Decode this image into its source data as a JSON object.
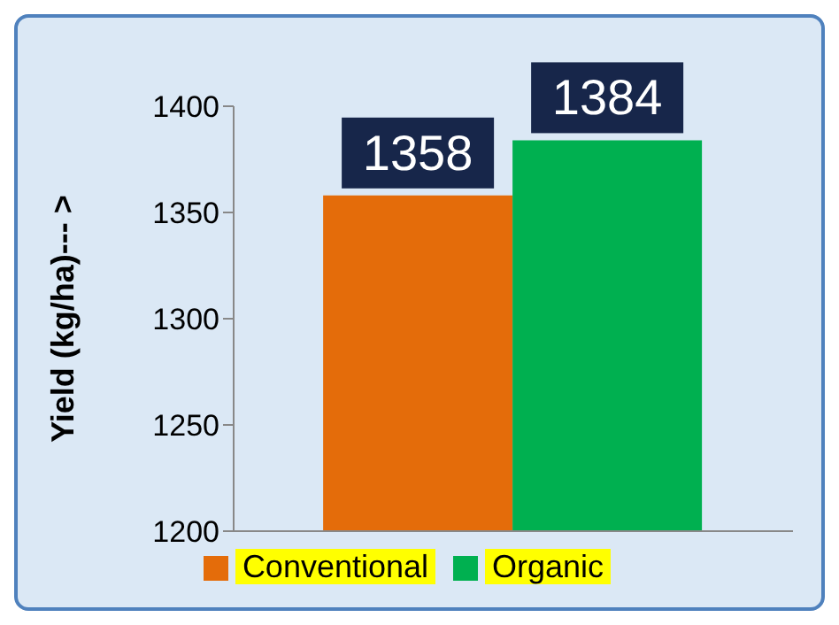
{
  "chart_data": {
    "type": "bar",
    "ylabel": "Yield  (kg/ha)--- >",
    "categories": [
      null
    ],
    "series": [
      {
        "name": "Conventional",
        "color": "#e46c0a",
        "values": [
          1358
        ]
      },
      {
        "name": "Organic",
        "color": "#00b050",
        "values": [
          1384
        ]
      }
    ],
    "ylim": [
      1200,
      1400
    ],
    "yticks": [
      1200,
      1250,
      1300,
      1350,
      1400
    ],
    "grid": false,
    "legend": "bottom",
    "data_labels": true
  }
}
